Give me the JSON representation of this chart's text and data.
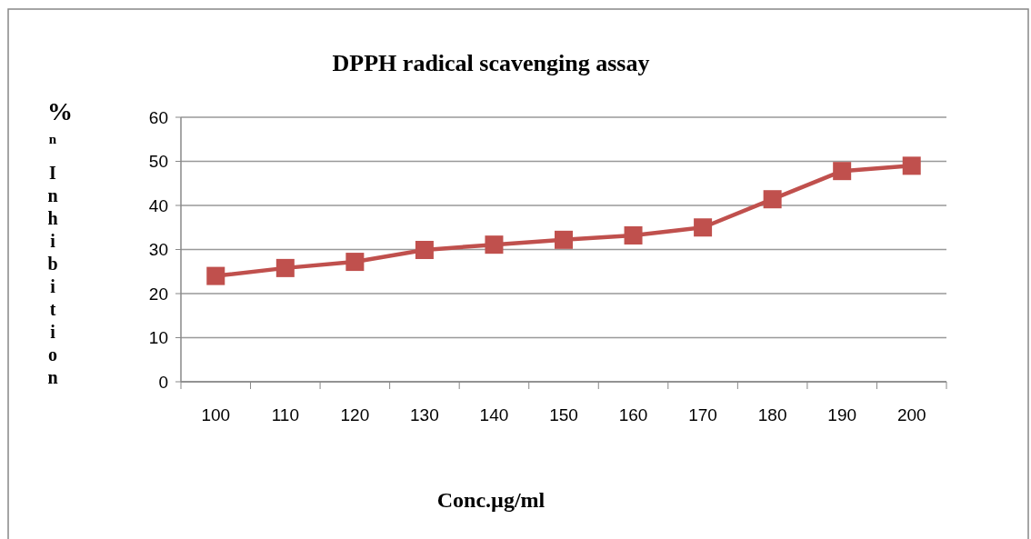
{
  "chart_data": {
    "type": "line",
    "title": "DPPH radical scavenging assay",
    "xlabel": "Conc.µg/ml",
    "ylabel": "%n Inhibition",
    "categories": [
      "100",
      "110",
      "120",
      "130",
      "140",
      "150",
      "160",
      "170",
      "180",
      "190",
      "200"
    ],
    "series": [
      {
        "color": "#c0504d",
        "values": [
          24,
          25.8,
          27.2,
          29.9,
          31.1,
          32.2,
          33.2,
          35,
          41.4,
          47.8,
          49
        ]
      }
    ],
    "ylim": [
      0,
      60
    ],
    "yticks": [
      0,
      10,
      20,
      30,
      40,
      50,
      60
    ],
    "grid": "y",
    "marker": "square",
    "line_style": "solid"
  }
}
